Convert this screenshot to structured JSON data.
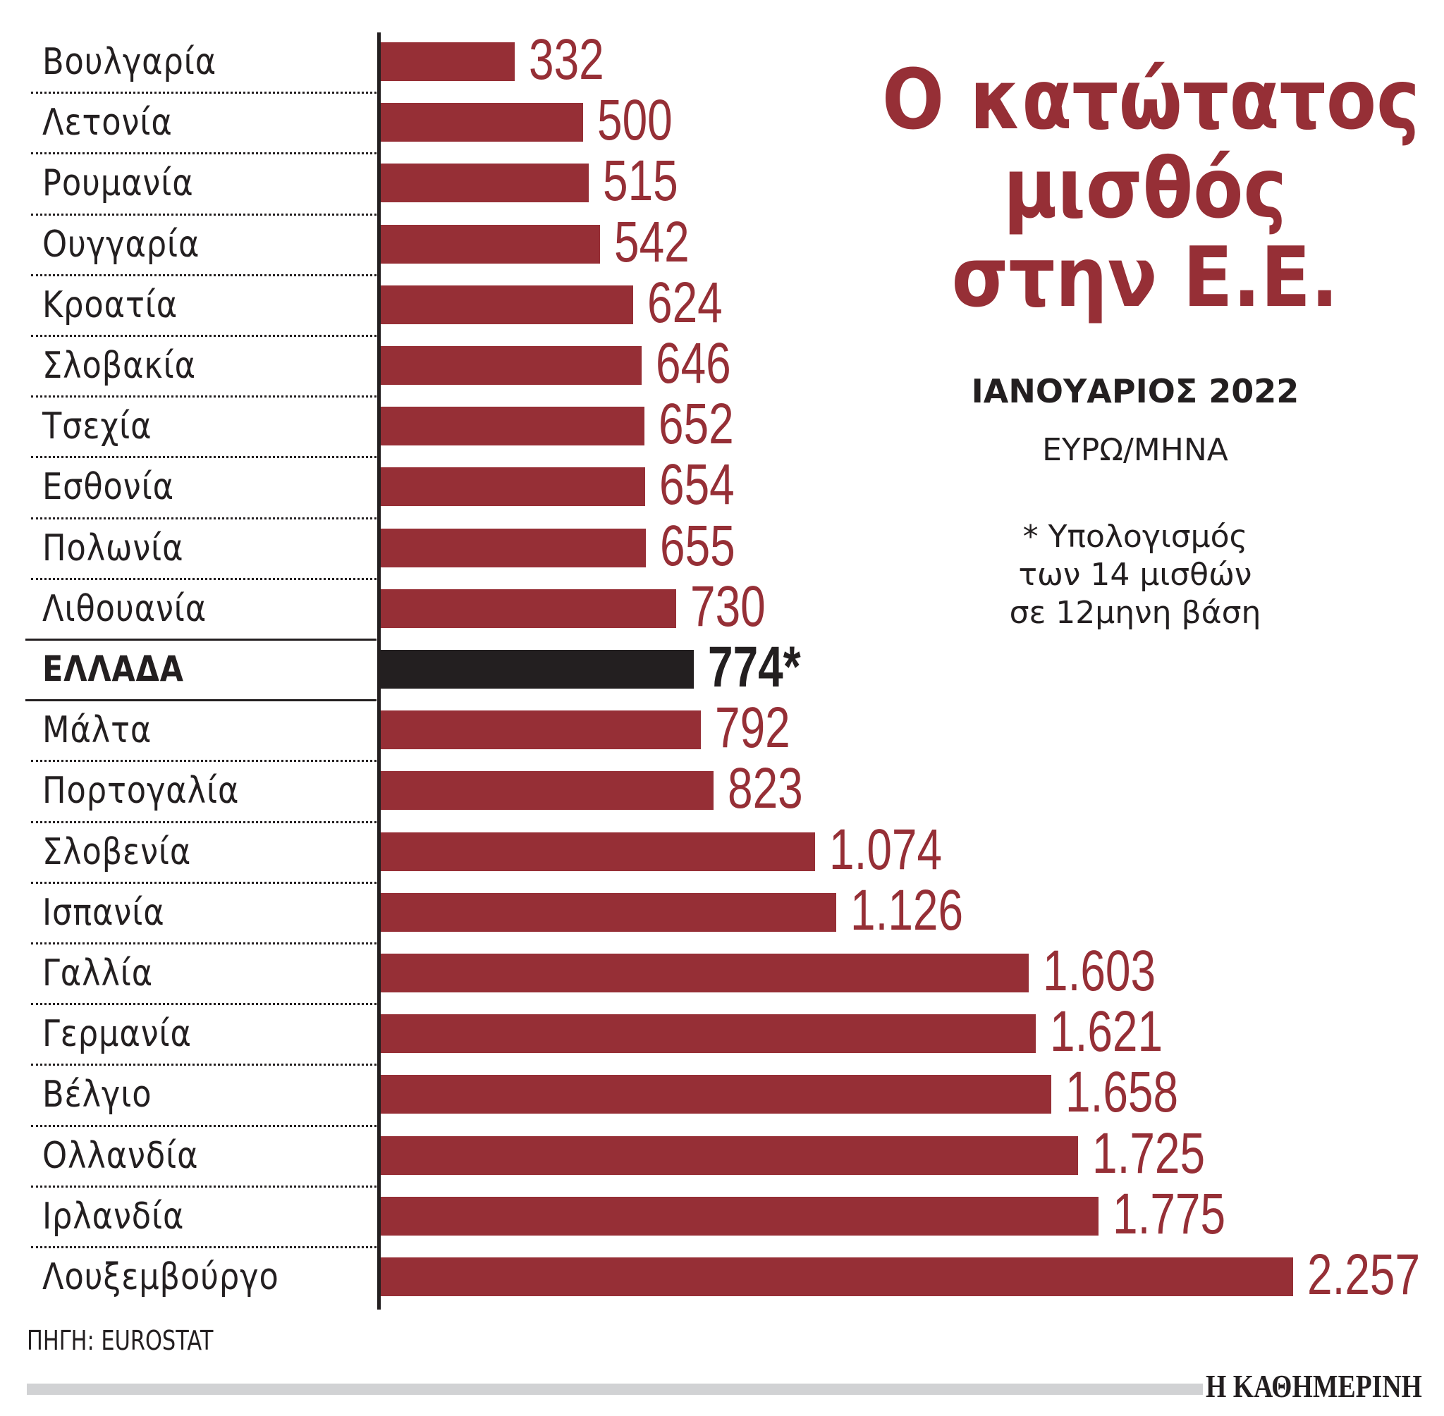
{
  "title_lines": [
    "Ο κατώτατος",
    "μισθός",
    "στην Ε.Ε."
  ],
  "subtitle": "ΙΑΝΟΥΑΡΙΟΣ 2022",
  "unit": "ΕΥΡΩ/ΜΗΝΑ",
  "note_lines": [
    "* Υπολογισμός",
    "των 14 μισθών",
    "σε 12μηνη βάση"
  ],
  "source": "ΠΗΓΗ: EUROSTAT",
  "brand": "Η ΚΑΘΗΜΕΡΙΝΗ",
  "colors": {
    "bar": "#962f36",
    "highlight": "#231f20",
    "title": "#962f36",
    "footer_bar": "#d1d2d4"
  },
  "rows": [
    {
      "label": "Βουλγαρία",
      "value": 332,
      "display": "332"
    },
    {
      "label": "Λετονία",
      "value": 500,
      "display": "500"
    },
    {
      "label": "Ρουμανία",
      "value": 515,
      "display": "515"
    },
    {
      "label": "Ουγγαρία",
      "value": 542,
      "display": "542"
    },
    {
      "label": "Κροατία",
      "value": 624,
      "display": "624"
    },
    {
      "label": "Σλοβακία",
      "value": 646,
      "display": "646"
    },
    {
      "label": "Τσεχία",
      "value": 652,
      "display": "652"
    },
    {
      "label": "Εσθονία",
      "value": 654,
      "display": "654"
    },
    {
      "label": "Πολωνία",
      "value": 655,
      "display": "655"
    },
    {
      "label": "Λιθουανία",
      "value": 730,
      "display": "730"
    },
    {
      "label": "ΕΛΛΑΔΑ",
      "value": 774,
      "display": "774*",
      "highlight": true
    },
    {
      "label": "Μάλτα",
      "value": 792,
      "display": "792"
    },
    {
      "label": "Πορτογαλία",
      "value": 823,
      "display": "823"
    },
    {
      "label": "Σλοβενία",
      "value": 1074,
      "display": "1.074"
    },
    {
      "label": "Ισπανία",
      "value": 1126,
      "display": "1.126"
    },
    {
      "label": "Γαλλία",
      "value": 1603,
      "display": "1.603"
    },
    {
      "label": "Γερμανία",
      "value": 1621,
      "display": "1.621"
    },
    {
      "label": "Βέλγιο",
      "value": 1658,
      "display": "1.658"
    },
    {
      "label": "Ολλανδία",
      "value": 1725,
      "display": "1.725"
    },
    {
      "label": "Ιρλανδία",
      "value": 1775,
      "display": "1.775"
    },
    {
      "label": "Λουξεμβούργο",
      "value": 2257,
      "display": "2.257"
    }
  ],
  "chart_data": {
    "type": "bar",
    "orientation": "horizontal",
    "title": "Ο κατώτατος μισθός στην Ε.Ε.",
    "subtitle": "ΙΑΝΟΥΑΡΙΟΣ 2022",
    "xlabel": "ΕΥΡΩ/ΜΗΝΑ",
    "ylabel": "",
    "categories": [
      "Βουλγαρία",
      "Λετονία",
      "Ρουμανία",
      "Ουγγαρία",
      "Κροατία",
      "Σλοβακία",
      "Τσεχία",
      "Εσθονία",
      "Πολωνία",
      "Λιθουανία",
      "ΕΛΛΑΔΑ",
      "Μάλτα",
      "Πορτογαλία",
      "Σλοβενία",
      "Ισπανία",
      "Γαλλία",
      "Γερμανία",
      "Βέλγιο",
      "Ολλανδία",
      "Ιρλανδία",
      "Λουξεμβούργο"
    ],
    "values": [
      332,
      500,
      515,
      542,
      624,
      646,
      652,
      654,
      655,
      730,
      774,
      792,
      823,
      1074,
      1126,
      1603,
      1621,
      1658,
      1725,
      1775,
      2257
    ],
    "highlight": "ΕΛΛΑΔΑ",
    "annotations": [
      "774* — * Υπολογισμός των 14 μισθών σε 12μηνη βάση"
    ],
    "source": "ΠΗΓΗ: EUROSTAT",
    "grid": false,
    "legend": "none",
    "xlim": [
      0,
      2257
    ]
  }
}
